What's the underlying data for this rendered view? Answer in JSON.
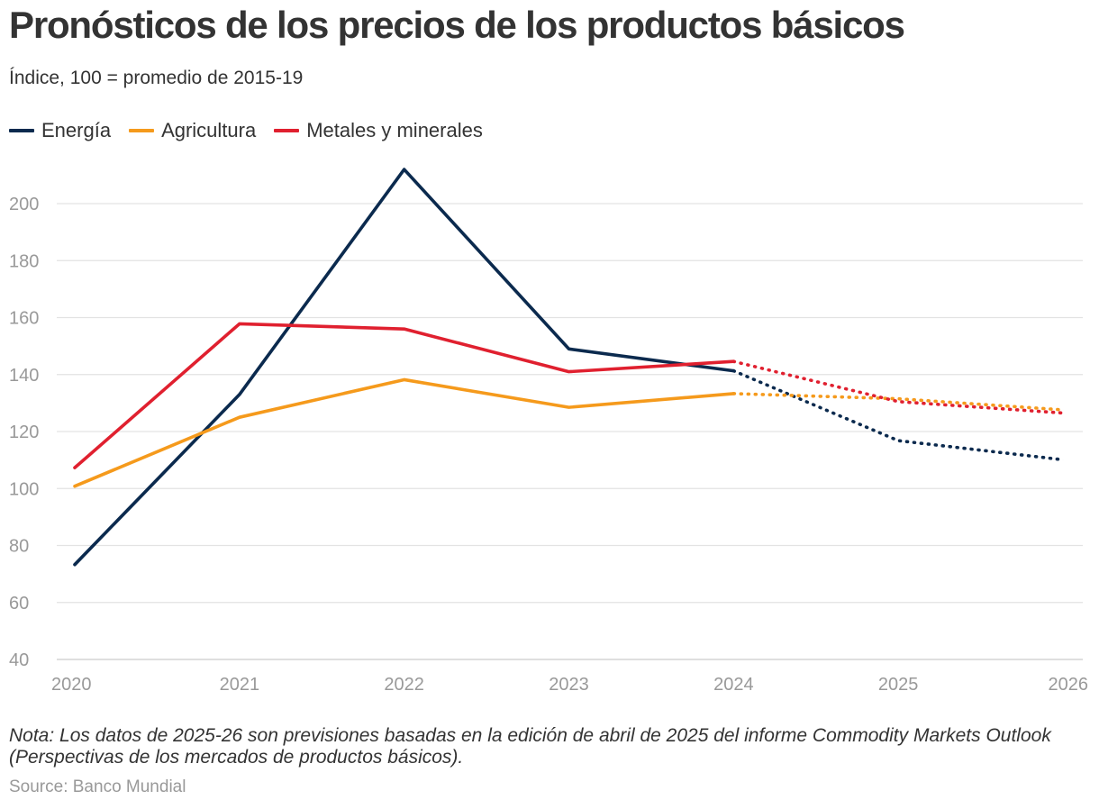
{
  "title": "Pronósticos de los precios de los productos básicos",
  "subtitle": "Índice, 100 = promedio de 2015-19",
  "legend": [
    {
      "label": "Energía",
      "color": "#0b2a4e"
    },
    {
      "label": "Agricultura",
      "color": "#f59a1c"
    },
    {
      "label": "Metales y minerales",
      "color": "#e0202f"
    }
  ],
  "note": "Nota: Los datos de 2025-26 son previsiones basadas en la edición de abril de 2025 del informe Commodity Markets Outlook (Perspectivas de los mercados de productos básicos).",
  "source": "Source: Banco Mundial",
  "chart_data": {
    "type": "line",
    "title": "Pronósticos de los precios de los productos básicos",
    "subtitle": "Índice, 100 = promedio de 2015-19",
    "xlabel": "",
    "ylabel": "",
    "x": [
      "2020",
      "2021",
      "2022",
      "2023",
      "2024",
      "2025",
      "2026"
    ],
    "forecast_from_index": 4,
    "ylim": [
      40,
      210
    ],
    "yticks": [
      40,
      60,
      80,
      100,
      120,
      140,
      160,
      180,
      200
    ],
    "grid": true,
    "legend_position": "top-left",
    "series": [
      {
        "name": "Energía",
        "color": "#0b2a4e",
        "values": [
          73.3,
          133,
          212,
          149,
          141.3,
          116.8,
          110.1
        ]
      },
      {
        "name": "Agricultura",
        "color": "#f59a1c",
        "values": [
          100.8,
          125,
          138.2,
          128.5,
          133.3,
          131.5,
          127.6
        ]
      },
      {
        "name": "Metales y minerales",
        "color": "#e0202f",
        "values": [
          107.3,
          157.8,
          156,
          141,
          144.6,
          130.5,
          126.5
        ]
      }
    ]
  }
}
